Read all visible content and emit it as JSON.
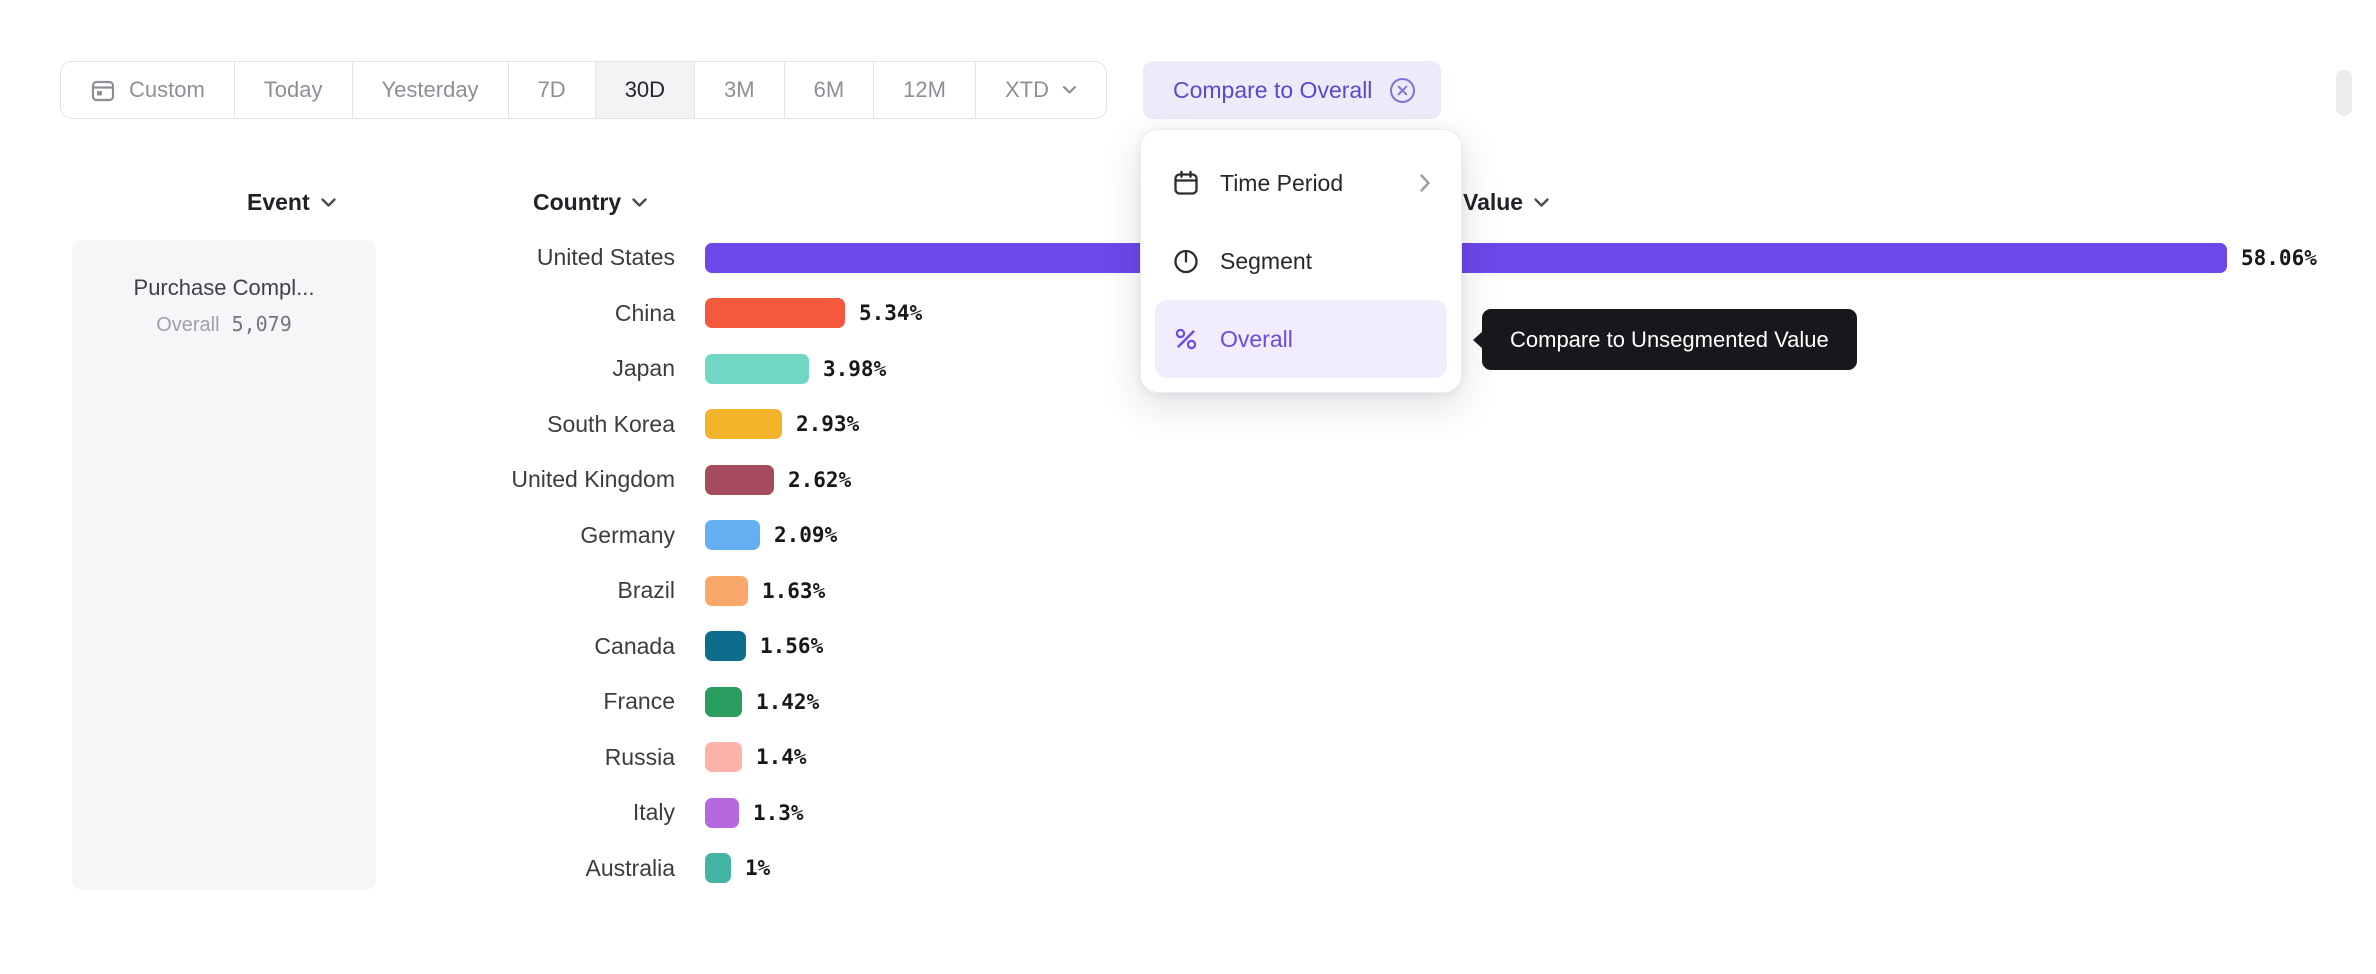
{
  "colors": {
    "accent": "#5a49cb",
    "accent_bg": "#edebfa",
    "accent_strong": "#6a4be2",
    "menu_selected_bg": "#f1edfc",
    "tooltip_bg": "#17181c"
  },
  "toolbar": {
    "custom_label": "Custom",
    "presets": [
      {
        "label": "Today"
      },
      {
        "label": "Yesterday"
      },
      {
        "label": "7D"
      },
      {
        "label": "30D"
      },
      {
        "label": "3M"
      },
      {
        "label": "6M"
      },
      {
        "label": "12M"
      },
      {
        "label": "XTD",
        "chevron": true
      }
    ],
    "active_preset": "30D",
    "compare_button": "Compare to Overall"
  },
  "menu": {
    "items": [
      {
        "label": "Time Period",
        "icon": "calendar-icon",
        "has_submenu": true
      },
      {
        "label": "Segment",
        "icon": "segment-icon"
      },
      {
        "label": "Overall",
        "icon": "percent-icon",
        "selected": true
      }
    ]
  },
  "tooltip": {
    "text": "Compare to Unsegmented Value"
  },
  "columns": {
    "event": "Event",
    "country": "Country",
    "value": "Value"
  },
  "event_card": {
    "title": "Purchase Compl...",
    "overall_label": "Overall",
    "overall_value": "5,079"
  },
  "chart_data": {
    "type": "bar",
    "orientation": "horizontal",
    "categories": [
      "United States",
      "China",
      "Japan",
      "South Korea",
      "United Kingdom",
      "Germany",
      "Brazil",
      "Canada",
      "France",
      "Russia",
      "Italy",
      "Australia"
    ],
    "values": [
      58.06,
      5.34,
      3.98,
      2.93,
      2.62,
      2.09,
      1.63,
      1.56,
      1.42,
      1.4,
      1.3,
      1
    ],
    "value_labels": [
      "58.06%",
      "5.34%",
      "3.98%",
      "2.93%",
      "2.62%",
      "2.09%",
      "1.63%",
      "1.56%",
      "1.42%",
      "1.4%",
      "1.3%",
      "1%"
    ],
    "colors": [
      "#6d47e9",
      "#f4583d",
      "#72d6c5",
      "#f2b32a",
      "#a64b5e",
      "#64aff2",
      "#f9a869",
      "#0d6d8c",
      "#2a9d60",
      "#fdb3aa",
      "#b669dd",
      "#43b3a2"
    ],
    "unit": "%"
  }
}
